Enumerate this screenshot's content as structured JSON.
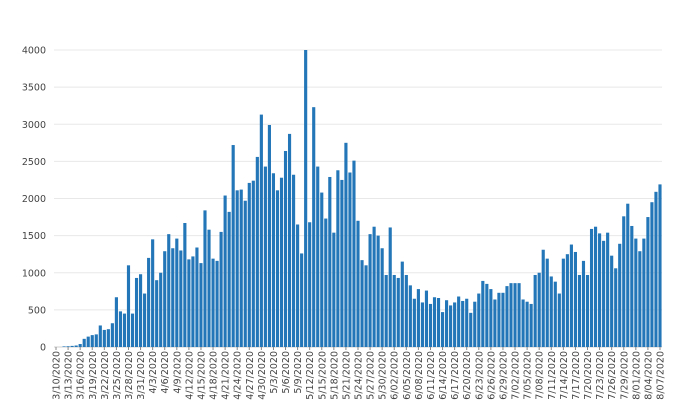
{
  "colors": {
    "bar": "#2376b7",
    "grid": "#e8e8e8",
    "text": "#444444"
  },
  "chart_data": {
    "type": "bar",
    "title": "",
    "xlabel": "",
    "ylabel": "",
    "ylim": [
      0,
      4000
    ],
    "grid": "horizontal",
    "y_ticks": [
      0,
      500,
      1000,
      1500,
      2000,
      2500,
      3000,
      3500,
      4000
    ],
    "x_tick_labels": [
      "3/10/2020",
      "3/13/2020",
      "3/16/2020",
      "3/19/2020",
      "3/22/2020",
      "3/25/2020",
      "3/28/2020",
      "3/31/2020",
      "4/3/2020",
      "4/6/2020",
      "4/9/2020",
      "4/12/2020",
      "4/15/2020",
      "4/18/2020",
      "4/21/2020",
      "4/24/2020",
      "4/27/2020",
      "4/30/2020",
      "5/3/2020",
      "5/6/2020",
      "5/9/2020",
      "5/12/2020",
      "5/15/2020",
      "5/18/2020",
      "5/21/2020",
      "5/24/2020",
      "5/27/2020",
      "5/30/2020",
      "6/02/2020",
      "6/05/2020",
      "6/08/2020",
      "6/11/2020",
      "6/14/2020",
      "6/17/2020",
      "6/20/2020",
      "6/23/2020",
      "6/26/2020",
      "6/29/2020",
      "7/02/2020",
      "7/05/2020",
      "7/08/2020",
      "7/11/2020",
      "7/14/2020",
      "7/17/2020",
      "7/20/2020",
      "7/23/2020",
      "7/26/2020",
      "7/29/2020",
      "8/01/2020",
      "8/04/2020",
      "8/07/2020"
    ],
    "start_date": "3/10/2020",
    "values": [
      0,
      0,
      5,
      10,
      15,
      20,
      40,
      110,
      140,
      160,
      170,
      290,
      230,
      240,
      320,
      670,
      480,
      450,
      1100,
      450,
      930,
      980,
      720,
      1200,
      1450,
      900,
      1000,
      1290,
      1520,
      1330,
      1460,
      1300,
      1670,
      1180,
      1220,
      1340,
      1130,
      1840,
      1580,
      1190,
      1160,
      1550,
      2040,
      1820,
      2720,
      2110,
      2120,
      1970,
      2210,
      2240,
      2560,
      3130,
      2430,
      2990,
      2340,
      2110,
      2280,
      2640,
      2870,
      2320,
      1650,
      1260,
      4000,
      1680,
      3230,
      2430,
      2080,
      1730,
      2290,
      1540,
      2380,
      2250,
      2750,
      2350,
      2510,
      1700,
      1170,
      1100,
      1520,
      1620,
      1500,
      1330,
      970,
      1610,
      970,
      930,
      1150,
      970,
      830,
      650,
      780,
      600,
      760,
      580,
      670,
      660,
      470,
      630,
      560,
      600,
      680,
      620,
      650,
      460,
      610,
      720,
      890,
      850,
      780,
      640,
      730,
      730,
      820,
      860,
      860,
      860,
      640,
      610,
      580,
      970,
      1000,
      1310,
      1190,
      950,
      880,
      720,
      1190,
      1250,
      1380,
      1280,
      970,
      1160,
      970,
      1590,
      1620,
      1530,
      1430,
      1540,
      1230,
      1060,
      1390,
      1760,
      1930,
      1630,
      1460,
      1290,
      1460,
      1750,
      1950,
      2090,
      2190
    ]
  }
}
